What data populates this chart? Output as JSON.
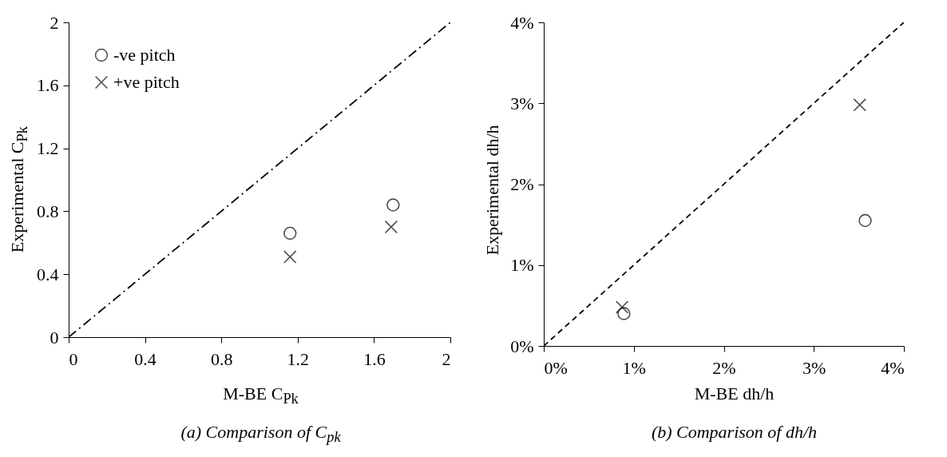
{
  "chart_data": [
    {
      "type": "scatter",
      "title": "(a)  Comparison of C$_{pk}$",
      "xlabel": "M-BE C$_{Pk}$",
      "ylabel": "Experimental C$_{Pk}$",
      "xlim": [
        0,
        2
      ],
      "ylim": [
        0,
        2
      ],
      "xticks": [
        0,
        0.4,
        0.8,
        1.2,
        1.6,
        2
      ],
      "yticks": [
        0,
        0.4,
        0.8,
        1.2,
        1.6,
        2
      ],
      "legend": "top left",
      "grid": false,
      "series": [
        {
          "name": "-ve pitch",
          "color": "#000000",
          "marker": "circle",
          "x": [
            1.16,
            1.7
          ],
          "values": [
            0.66,
            0.84
          ]
        },
        {
          "name": "+ve pitch",
          "color": "#000000",
          "marker": "cross",
          "x": [
            1.16,
            1.69
          ],
          "values": [
            0.51,
            0.7
          ]
        },
        {
          "type": "line",
          "color": "#000000",
          "line_style": "dashdot",
          "x": [
            0,
            2
          ],
          "values": [
            0,
            2
          ]
        }
      ]
    },
    {
      "type": "scatter",
      "title": "(b)  Comparison of dh/h",
      "xlabel": "M-BE dh/h",
      "ylabel": "Experimental dh/h",
      "xlim": [
        0,
        4
      ],
      "ylim": [
        0,
        4
      ],
      "xticks": [
        {
          "value": 0,
          "label": "0%"
        },
        {
          "value": 1,
          "label": "1%"
        },
        {
          "value": 2,
          "label": "2%"
        },
        {
          "value": 3,
          "label": "3%"
        },
        {
          "value": 4,
          "label": "4%"
        }
      ],
      "yticks": [
        {
          "value": 0,
          "label": "0%"
        },
        {
          "value": 1,
          "label": "1%"
        },
        {
          "value": 2,
          "label": "2%"
        },
        {
          "value": 3,
          "label": "3%"
        },
        {
          "value": 4,
          "label": "4%"
        }
      ],
      "grid": false,
      "series": [
        {
          "color": "#000000",
          "marker": "circle",
          "x": [
            0.89,
            3.57
          ],
          "values": [
            0.4,
            1.55
          ]
        },
        {
          "color": "#000000",
          "marker": "cross",
          "x": [
            0.87,
            3.51
          ],
          "values": [
            0.48,
            2.98
          ]
        },
        {
          "type": "line",
          "color": "#000000",
          "line_style": "dashed",
          "x": [
            0,
            4
          ],
          "values": [
            0,
            4
          ]
        }
      ]
    }
  ]
}
